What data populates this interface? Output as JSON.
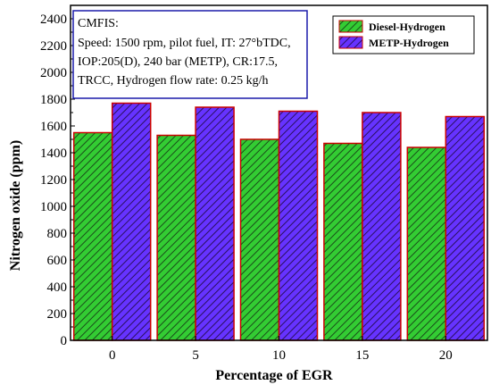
{
  "chart_data": {
    "type": "bar",
    "categories": [
      "0",
      "5",
      "10",
      "15",
      "20"
    ],
    "series": [
      {
        "name": "Diesel-Hydrogen",
        "values": [
          1550,
          1530,
          1500,
          1470,
          1440
        ],
        "color": "#33cc33",
        "hatch_color": "#1a4d1a"
      },
      {
        "name": "METP-Hydrogen",
        "values": [
          1770,
          1740,
          1710,
          1700,
          1670
        ],
        "color": "#6633ff",
        "hatch_color": "#2a1060"
      }
    ],
    "bar_edge_color": "#cc0000",
    "xlabel": "Percentage of EGR",
    "ylabel": "Nitrogen oxide (ppm)",
    "ylim": [
      0,
      2500
    ],
    "yticks": [
      0,
      200,
      400,
      600,
      800,
      1000,
      1200,
      1400,
      1600,
      1800,
      2000,
      2200,
      2400
    ],
    "grid": false,
    "legend_position": "top-right",
    "annotation": {
      "lines": [
        "CMFIS:",
        "Speed: 1500 rpm, pilot fuel, IT: 27°bTDC,",
        "IOP:205(D), 240 bar (METP), CR:17.5,",
        "TRCC, Hydrogen flow rate: 0.25 kg/h"
      ],
      "border_color": "#1a1aaa"
    }
  }
}
